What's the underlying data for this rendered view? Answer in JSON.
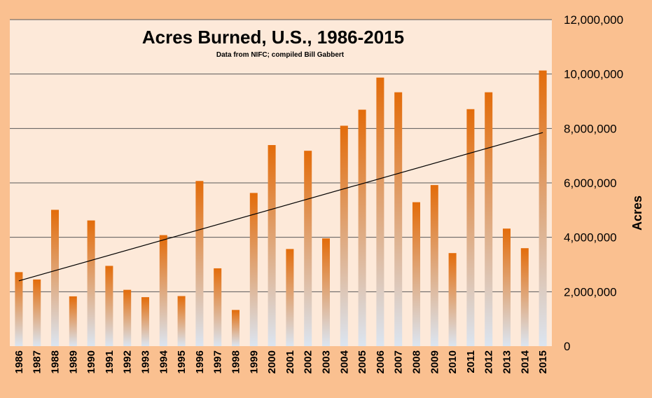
{
  "chart_data": {
    "type": "bar",
    "title": "Acres Burned, U.S., 1986-2015",
    "subtitle": "Data from NIFC; compiled  Bill Gabbert",
    "xlabel": "",
    "ylabel": "Acres",
    "ylim": [
      0,
      12000000
    ],
    "yticks": [
      0,
      2000000,
      4000000,
      6000000,
      8000000,
      10000000,
      12000000
    ],
    "ytick_labels": [
      "0",
      "2,000,000",
      "4,000,000",
      "6,000,000",
      "8,000,000",
      "10,000,000",
      "12,000,000"
    ],
    "categories": [
      "1986",
      "1987",
      "1988",
      "1989",
      "1990",
      "1991",
      "1992",
      "1993",
      "1994",
      "1995",
      "1996",
      "1997",
      "1998",
      "1999",
      "2000",
      "2001",
      "2002",
      "2003",
      "2004",
      "2005",
      "2006",
      "2007",
      "2008",
      "2009",
      "2010",
      "2011",
      "2012",
      "2013",
      "2014",
      "2015"
    ],
    "values": [
      2720000,
      2450000,
      5010000,
      1830000,
      4620000,
      2950000,
      2070000,
      1800000,
      4080000,
      1840000,
      6070000,
      2860000,
      1330000,
      5630000,
      7390000,
      3570000,
      7180000,
      3960000,
      8100000,
      8690000,
      9870000,
      9330000,
      5290000,
      5920000,
      3420000,
      8710000,
      9330000,
      4320000,
      3600000,
      10130000
    ],
    "trendline": {
      "start_value": 2400000,
      "end_value": 7850000
    },
    "grid": true,
    "legend": "none",
    "colors": {
      "bar_top": "#e36c0a",
      "bar_bottom": "#dbe5f1",
      "plot_bg": "#fde9d9",
      "outer_bg": "#fac090",
      "grid": "#595959",
      "trend": "#000000"
    }
  }
}
